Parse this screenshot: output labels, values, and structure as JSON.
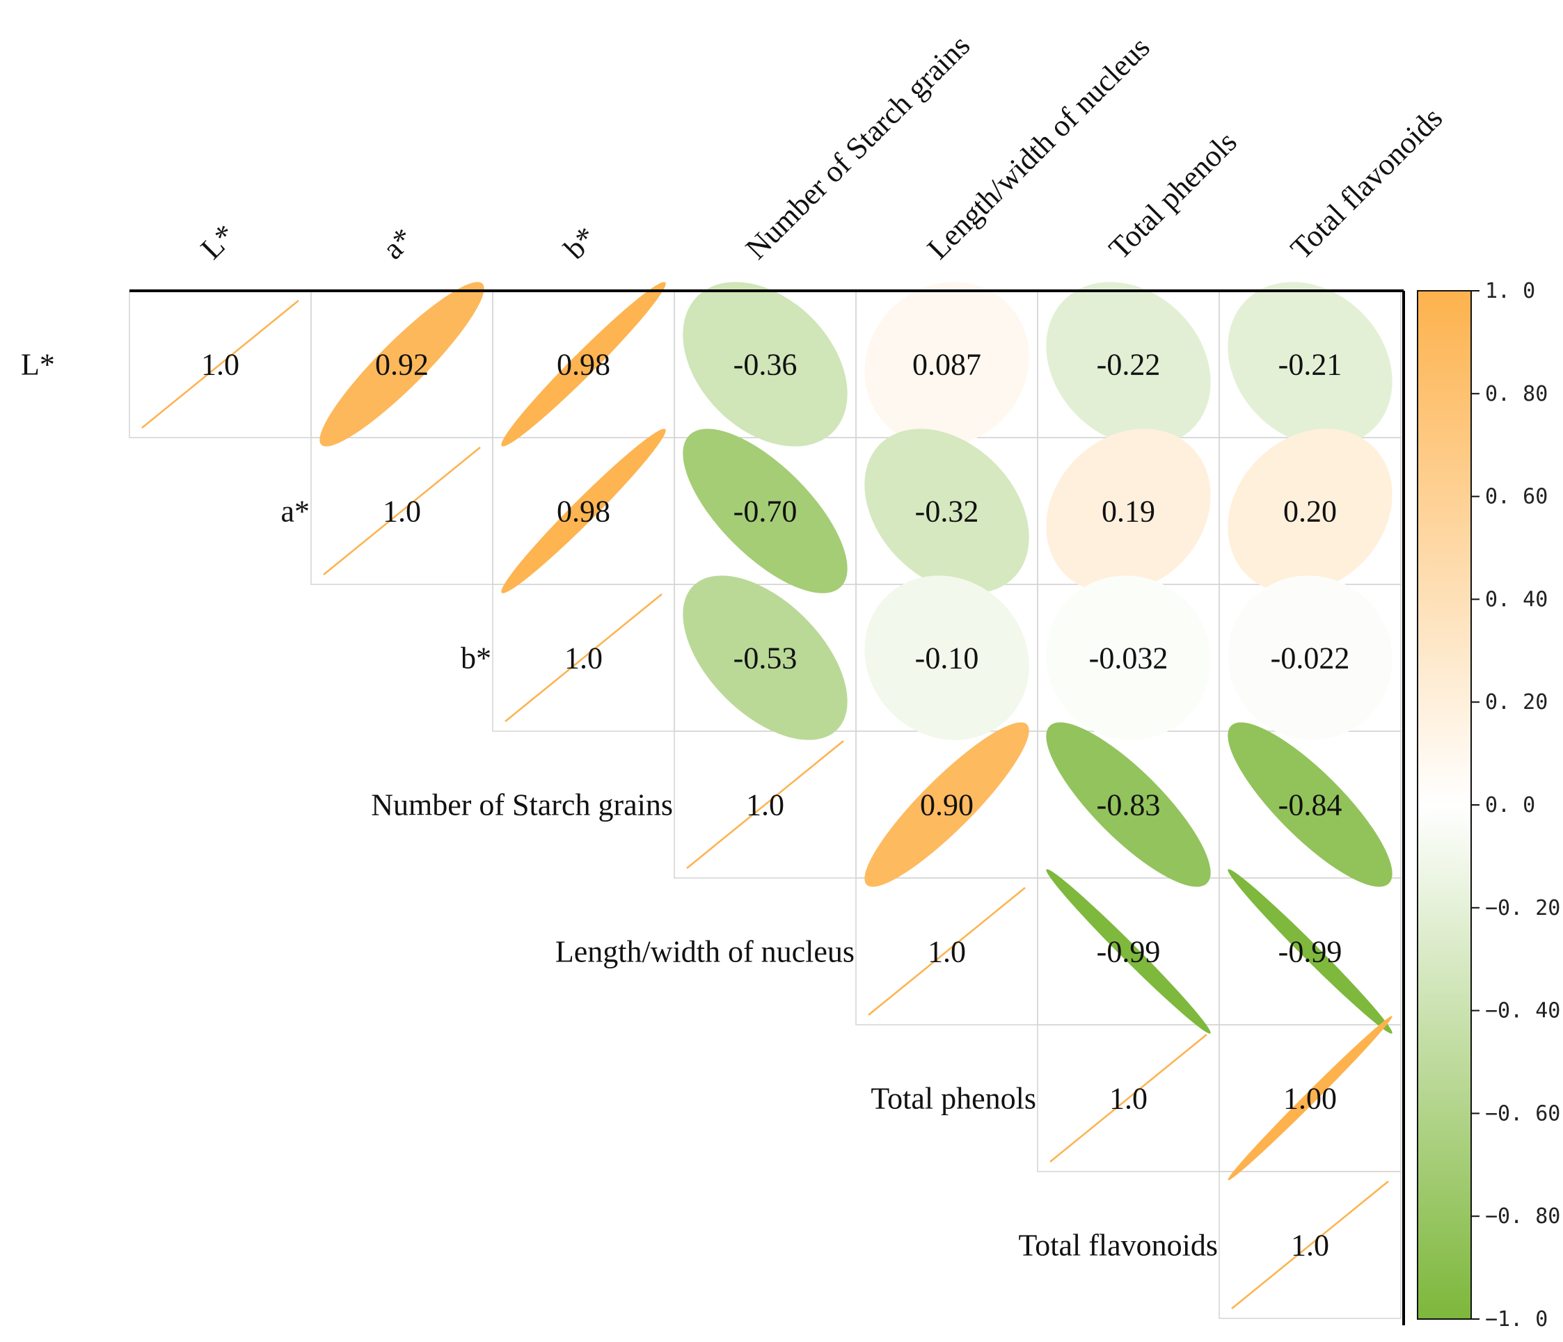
{
  "chart_data": {
    "type": "heatmap",
    "style": "ellipse-correlation-upper-triangle",
    "variables": [
      "L*",
      "a*",
      "b*",
      "Number of Starch grains",
      "Length/width of nucleus",
      "Total phenols",
      "Total flavonoids"
    ],
    "row_labels": [
      "L*",
      "a*",
      "b*",
      "Number of Starch grains",
      "Length/width of nucleus",
      "Total phenols",
      "Total flavonoids"
    ],
    "matrix": [
      [
        1.0,
        0.92,
        0.98,
        -0.36,
        0.087,
        -0.22,
        -0.21
      ],
      [
        null,
        1.0,
        0.98,
        -0.7,
        -0.32,
        0.19,
        0.2
      ],
      [
        null,
        null,
        1.0,
        -0.53,
        -0.1,
        -0.032,
        -0.022
      ],
      [
        null,
        null,
        null,
        1.0,
        0.9,
        -0.83,
        -0.84
      ],
      [
        null,
        null,
        null,
        null,
        1.0,
        -0.99,
        -0.99
      ],
      [
        null,
        null,
        null,
        null,
        null,
        1.0,
        1.0
      ],
      [
        null,
        null,
        null,
        null,
        null,
        null,
        1.0
      ]
    ],
    "labels": [
      [
        "1.0",
        "0.92",
        "0.98",
        "-0.36",
        "0.087",
        "-0.22",
        "-0.21"
      ],
      [
        null,
        "1.0",
        "0.98",
        "-0.70",
        "-0.32",
        "0.19",
        "0.20"
      ],
      [
        null,
        null,
        "1.0",
        "-0.53",
        "-0.10",
        "-0.032",
        "-0.022"
      ],
      [
        null,
        null,
        null,
        "1.0",
        "0.90",
        "-0.83",
        "-0.84"
      ],
      [
        null,
        null,
        null,
        null,
        "1.0",
        "-0.99",
        "-0.99"
      ],
      [
        null,
        null,
        null,
        null,
        null,
        "1.0",
        "1.00"
      ],
      [
        null,
        null,
        null,
        null,
        null,
        null,
        "1.0"
      ]
    ],
    "colorbar": {
      "range": [
        -1.0,
        1.0
      ],
      "ticks": [
        1.0,
        0.8,
        0.6,
        0.4,
        0.2,
        0.0,
        -0.2,
        -0.4,
        -0.6,
        -0.8,
        -1.0
      ],
      "tick_labels": [
        "1. 0",
        "0. 80",
        "0. 60",
        "0. 40",
        "0. 20",
        "0. 0",
        "−0. 20",
        "−0. 40",
        "−0. 60",
        "−0. 80",
        "−1. 0"
      ],
      "colors": {
        "positive": "#FDB24D",
        "zero": "#FFFFFF",
        "negative": "#7DB73B"
      }
    },
    "legend_position": "right"
  }
}
